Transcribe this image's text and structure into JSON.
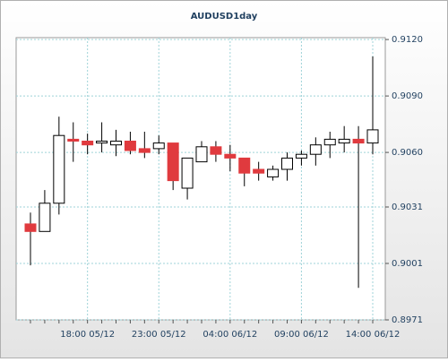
{
  "chart_data": {
    "type": "candlestick",
    "title": "AUDUSD1day",
    "categories": [
      null,
      null,
      null,
      null,
      "18:00 05/12",
      null,
      null,
      null,
      null,
      "23:00 05/12",
      null,
      null,
      null,
      null,
      "04:00 06/12",
      null,
      null,
      null,
      null,
      "09:00 06/12",
      null,
      null,
      null,
      null,
      "14:00 06/12"
    ],
    "open": [
      0.9022,
      0.9018,
      0.9033,
      0.9067,
      0.9066,
      0.9065,
      0.9064,
      0.9066,
      0.9062,
      0.9062,
      0.9065,
      0.9041,
      0.9055,
      0.9063,
      0.9059,
      0.9057,
      0.9051,
      0.9047,
      0.9051,
      0.9057,
      0.9059,
      0.9064,
      0.9065,
      0.9067,
      0.9065
    ],
    "high": [
      0.9028,
      0.904,
      0.9079,
      0.9076,
      0.907,
      0.9076,
      0.9072,
      0.9071,
      0.9071,
      0.9069,
      0.9065,
      0.9057,
      0.9066,
      0.9066,
      0.9064,
      0.9057,
      0.9055,
      0.9053,
      0.906,
      0.9061,
      0.9068,
      0.9071,
      0.9074,
      0.9074,
      0.9111
    ],
    "low": [
      0.9,
      0.9018,
      0.9027,
      0.9055,
      0.9059,
      0.906,
      0.9058,
      0.9059,
      0.9057,
      0.9059,
      0.904,
      0.9035,
      0.9055,
      0.9055,
      0.905,
      0.9042,
      0.9045,
      0.9045,
      0.9045,
      0.9053,
      0.9053,
      0.9057,
      0.906,
      0.8988,
      0.9059
    ],
    "close": [
      0.9018,
      0.9033,
      0.9069,
      0.9066,
      0.9064,
      0.9066,
      0.9066,
      0.9061,
      0.906,
      0.9065,
      0.9045,
      0.9057,
      0.9063,
      0.9059,
      0.9057,
      0.9049,
      0.9049,
      0.9051,
      0.9057,
      0.9059,
      0.9064,
      0.9067,
      0.9067,
      0.9065,
      0.9072
    ],
    "up_color": "#ffffff",
    "down_color": "#e03a3e",
    "ylim": [
      0.8971,
      0.9121
    ],
    "yticks": [
      {
        "value": 0.912,
        "label": "0.9120"
      },
      {
        "value": 0.909,
        "label": "0.9090"
      },
      {
        "value": 0.906,
        "label": "0.9060"
      },
      0.9031,
      0.9001,
      0.8971
    ],
    "grid": true
  }
}
